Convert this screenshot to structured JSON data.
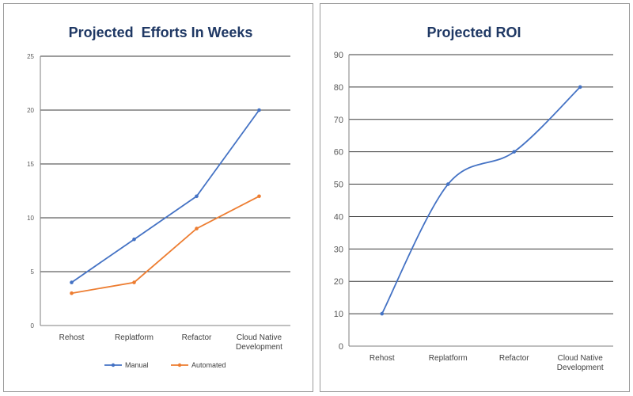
{
  "chart_data": [
    {
      "type": "line",
      "title": "Projected  Efforts In Weeks",
      "categories": [
        "Rehost",
        "Replatform",
        "Refactor",
        "Cloud Native Development"
      ],
      "category_lines": [
        [
          "Rehost"
        ],
        [
          "Replatform"
        ],
        [
          "Refactor"
        ],
        [
          "Cloud Native",
          "Development"
        ]
      ],
      "series": [
        {
          "name": "Manual",
          "values": [
            4,
            8,
            12,
            20
          ],
          "color": "#4472c4"
        },
        {
          "name": "Automated",
          "values": [
            3,
            4,
            9,
            12
          ],
          "color": "#ed7d31"
        }
      ],
      "ylim": [
        0,
        25
      ],
      "yticks": [
        0,
        5,
        10,
        15,
        20,
        25
      ],
      "grid": true,
      "legend": "bottom",
      "xlabel": "",
      "ylabel": ""
    },
    {
      "type": "line",
      "title": "Projected ROI",
      "categories": [
        "Rehost",
        "Replatform",
        "Refactor",
        "Cloud Native Development"
      ],
      "category_lines": [
        [
          "Rehost"
        ],
        [
          "Replatform"
        ],
        [
          "Refactor"
        ],
        [
          "Cloud Native",
          "Development"
        ]
      ],
      "series": [
        {
          "name": "ROI",
          "values": [
            10,
            50,
            60,
            80
          ],
          "color": "#4472c4",
          "smooth": true
        }
      ],
      "ylim": [
        0,
        90
      ],
      "yticks": [
        0,
        10,
        20,
        30,
        40,
        50,
        60,
        70,
        80,
        90
      ],
      "grid": true,
      "legend": "none",
      "xlabel": "",
      "ylabel": ""
    }
  ]
}
